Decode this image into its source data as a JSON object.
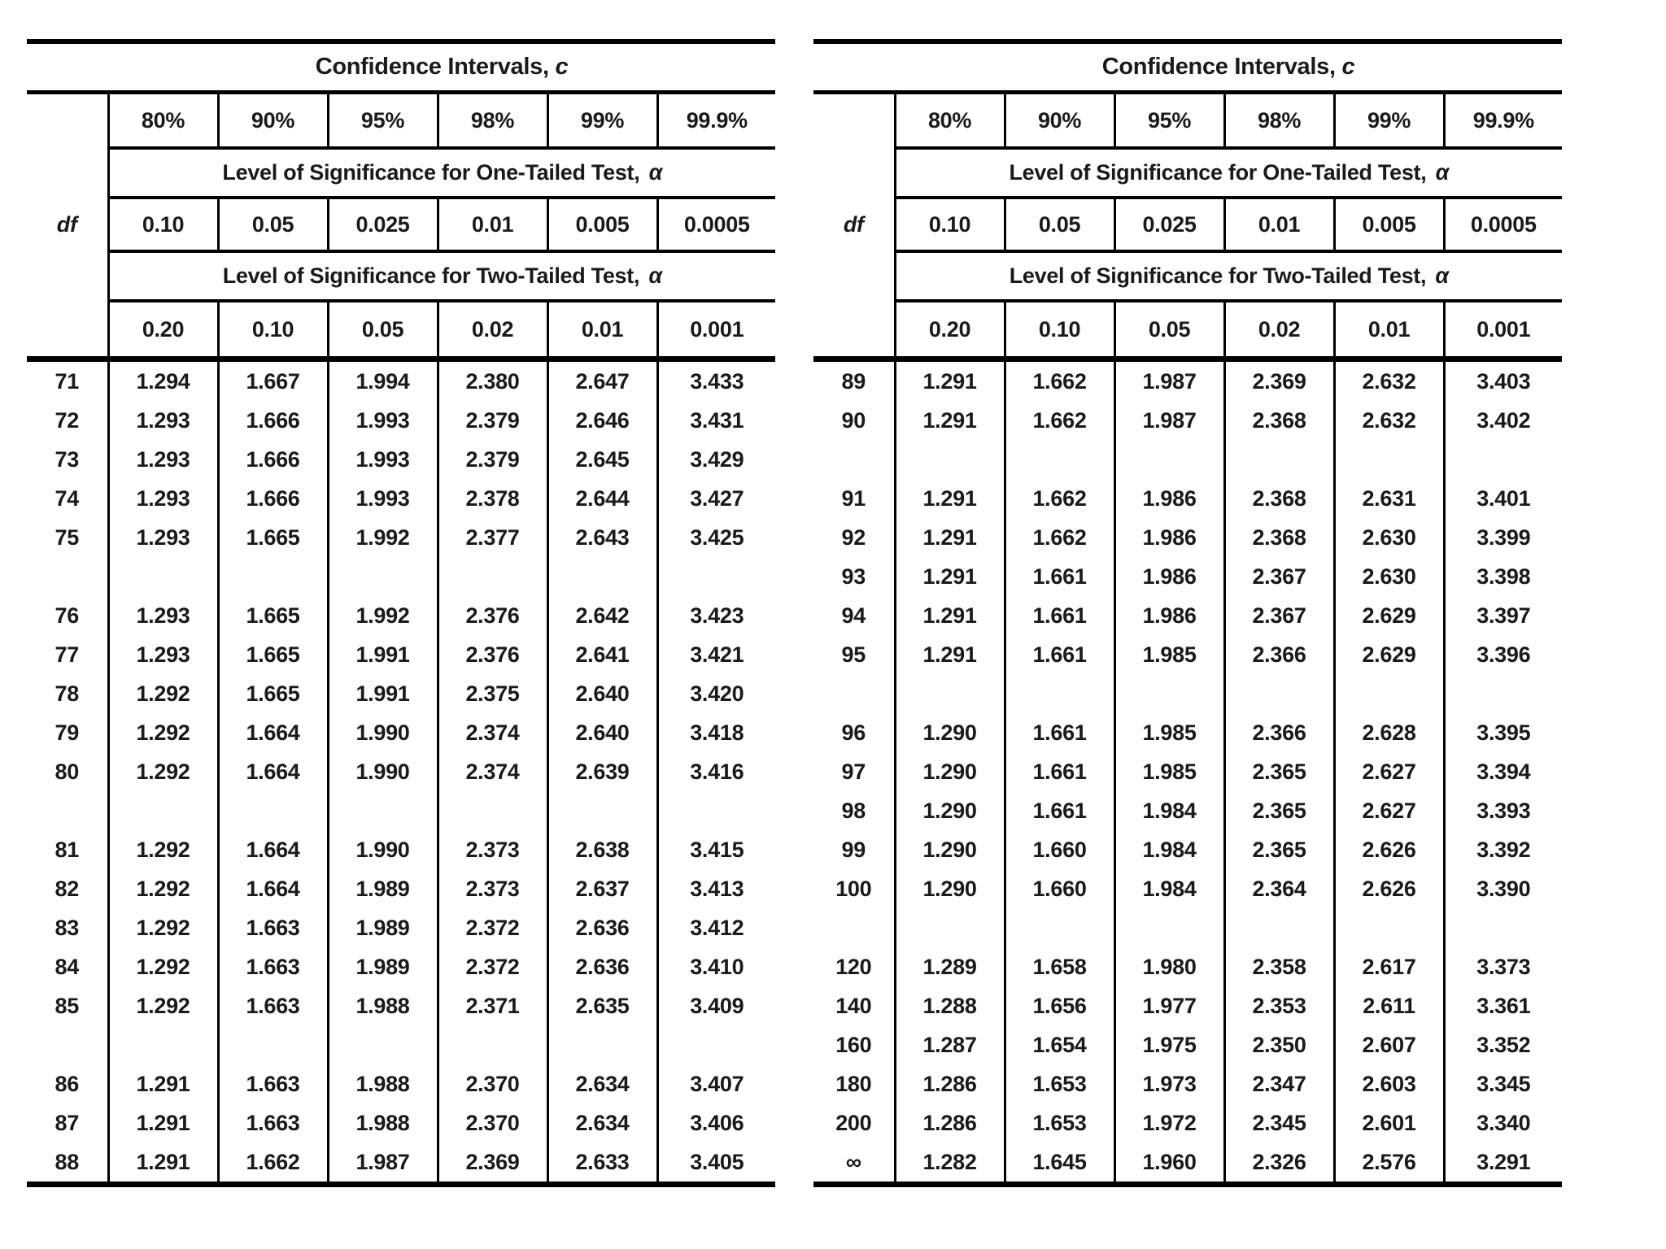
{
  "common": {
    "title_main": "Confidence Intervals, ",
    "title_var": "c",
    "levels": [
      "80%",
      "90%",
      "95%",
      "98%",
      "99%",
      "99.9%"
    ],
    "one_tailed_label": "Level of Significance for One-Tailed Test, ",
    "two_tailed_label": "Level of Significance for Two-Tailed Test, ",
    "alpha_symbol": "α",
    "df_label": "df",
    "alphas_one_tailed": [
      "0.10",
      "0.05",
      "0.025",
      "0.01",
      "0.005",
      "0.0005"
    ],
    "alphas_two_tailed": [
      "0.20",
      "0.10",
      "0.05",
      "0.02",
      "0.01",
      "0.001"
    ]
  },
  "colors": {
    "ink": "#1a1a1a",
    "rule": "#000000",
    "paper": "#ffffff"
  },
  "left_table": {
    "rows": [
      {
        "df": "71",
        "v": [
          "1.294",
          "1.667",
          "1.994",
          "2.380",
          "2.647",
          "3.433"
        ]
      },
      {
        "df": "72",
        "v": [
          "1.293",
          "1.666",
          "1.993",
          "2.379",
          "2.646",
          "3.431"
        ]
      },
      {
        "df": "73",
        "v": [
          "1.293",
          "1.666",
          "1.993",
          "2.379",
          "2.645",
          "3.429"
        ]
      },
      {
        "df": "74",
        "v": [
          "1.293",
          "1.666",
          "1.993",
          "2.378",
          "2.644",
          "3.427"
        ]
      },
      {
        "df": "75",
        "v": [
          "1.293",
          "1.665",
          "1.992",
          "2.377",
          "2.643",
          "3.425"
        ]
      },
      {
        "df": "",
        "v": [
          "",
          "",
          "",
          "",
          "",
          ""
        ]
      },
      {
        "df": "76",
        "v": [
          "1.293",
          "1.665",
          "1.992",
          "2.376",
          "2.642",
          "3.423"
        ]
      },
      {
        "df": "77",
        "v": [
          "1.293",
          "1.665",
          "1.991",
          "2.376",
          "2.641",
          "3.421"
        ]
      },
      {
        "df": "78",
        "v": [
          "1.292",
          "1.665",
          "1.991",
          "2.375",
          "2.640",
          "3.420"
        ]
      },
      {
        "df": "79",
        "v": [
          "1.292",
          "1.664",
          "1.990",
          "2.374",
          "2.640",
          "3.418"
        ]
      },
      {
        "df": "80",
        "v": [
          "1.292",
          "1.664",
          "1.990",
          "2.374",
          "2.639",
          "3.416"
        ]
      },
      {
        "df": "",
        "v": [
          "",
          "",
          "",
          "",
          "",
          ""
        ]
      },
      {
        "df": "81",
        "v": [
          "1.292",
          "1.664",
          "1.990",
          "2.373",
          "2.638",
          "3.415"
        ]
      },
      {
        "df": "82",
        "v": [
          "1.292",
          "1.664",
          "1.989",
          "2.373",
          "2.637",
          "3.413"
        ]
      },
      {
        "df": "83",
        "v": [
          "1.292",
          "1.663",
          "1.989",
          "2.372",
          "2.636",
          "3.412"
        ]
      },
      {
        "df": "84",
        "v": [
          "1.292",
          "1.663",
          "1.989",
          "2.372",
          "2.636",
          "3.410"
        ]
      },
      {
        "df": "85",
        "v": [
          "1.292",
          "1.663",
          "1.988",
          "2.371",
          "2.635",
          "3.409"
        ]
      },
      {
        "df": "",
        "v": [
          "",
          "",
          "",
          "",
          "",
          ""
        ]
      },
      {
        "df": "86",
        "v": [
          "1.291",
          "1.663",
          "1.988",
          "2.370",
          "2.634",
          "3.407"
        ]
      },
      {
        "df": "87",
        "v": [
          "1.291",
          "1.663",
          "1.988",
          "2.370",
          "2.634",
          "3.406"
        ]
      },
      {
        "df": "88",
        "v": [
          "1.291",
          "1.662",
          "1.987",
          "2.369",
          "2.633",
          "3.405"
        ]
      }
    ]
  },
  "right_table": {
    "rows": [
      {
        "df": "89",
        "v": [
          "1.291",
          "1.662",
          "1.987",
          "2.369",
          "2.632",
          "3.403"
        ]
      },
      {
        "df": "90",
        "v": [
          "1.291",
          "1.662",
          "1.987",
          "2.368",
          "2.632",
          "3.402"
        ]
      },
      {
        "df": "",
        "v": [
          "",
          "",
          "",
          "",
          "",
          ""
        ]
      },
      {
        "df": "91",
        "v": [
          "1.291",
          "1.662",
          "1.986",
          "2.368",
          "2.631",
          "3.401"
        ]
      },
      {
        "df": "92",
        "v": [
          "1.291",
          "1.662",
          "1.986",
          "2.368",
          "2.630",
          "3.399"
        ]
      },
      {
        "df": "93",
        "v": [
          "1.291",
          "1.661",
          "1.986",
          "2.367",
          "2.630",
          "3.398"
        ]
      },
      {
        "df": "94",
        "v": [
          "1.291",
          "1.661",
          "1.986",
          "2.367",
          "2.629",
          "3.397"
        ]
      },
      {
        "df": "95",
        "v": [
          "1.291",
          "1.661",
          "1.985",
          "2.366",
          "2.629",
          "3.396"
        ]
      },
      {
        "df": "",
        "v": [
          "",
          "",
          "",
          "",
          "",
          ""
        ]
      },
      {
        "df": "96",
        "v": [
          "1.290",
          "1.661",
          "1.985",
          "2.366",
          "2.628",
          "3.395"
        ]
      },
      {
        "df": "97",
        "v": [
          "1.290",
          "1.661",
          "1.985",
          "2.365",
          "2.627",
          "3.394"
        ]
      },
      {
        "df": "98",
        "v": [
          "1.290",
          "1.661",
          "1.984",
          "2.365",
          "2.627",
          "3.393"
        ]
      },
      {
        "df": "99",
        "v": [
          "1.290",
          "1.660",
          "1.984",
          "2.365",
          "2.626",
          "3.392"
        ]
      },
      {
        "df": "100",
        "v": [
          "1.290",
          "1.660",
          "1.984",
          "2.364",
          "2.626",
          "3.390"
        ]
      },
      {
        "df": "",
        "v": [
          "",
          "",
          "",
          "",
          "",
          ""
        ]
      },
      {
        "df": "120",
        "v": [
          "1.289",
          "1.658",
          "1.980",
          "2.358",
          "2.617",
          "3.373"
        ]
      },
      {
        "df": "140",
        "v": [
          "1.288",
          "1.656",
          "1.977",
          "2.353",
          "2.611",
          "3.361"
        ]
      },
      {
        "df": "160",
        "v": [
          "1.287",
          "1.654",
          "1.975",
          "2.350",
          "2.607",
          "3.352"
        ]
      },
      {
        "df": "180",
        "v": [
          "1.286",
          "1.653",
          "1.973",
          "2.347",
          "2.603",
          "3.345"
        ]
      },
      {
        "df": "200",
        "v": [
          "1.286",
          "1.653",
          "1.972",
          "2.345",
          "2.601",
          "3.340"
        ]
      },
      {
        "df": "∞",
        "v": [
          "1.282",
          "1.645",
          "1.960",
          "2.326",
          "2.576",
          "3.291"
        ]
      }
    ]
  }
}
